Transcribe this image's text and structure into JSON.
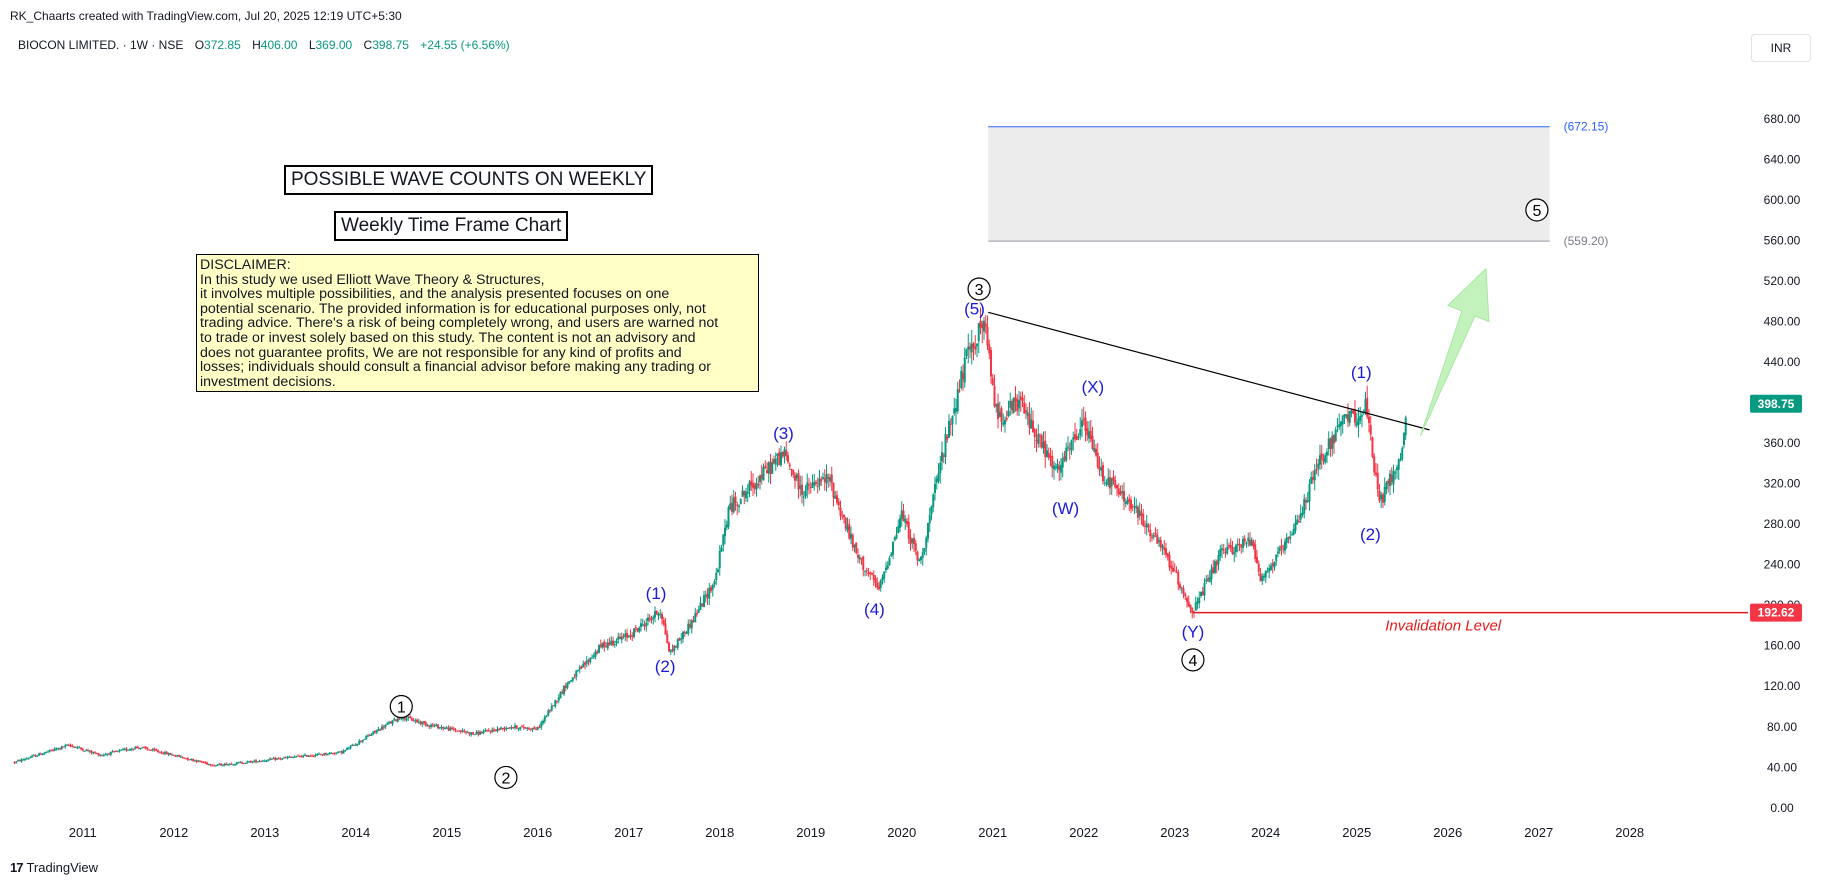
{
  "header": {
    "credit": "RK_Chaarts created with TradingView.com, Jul 20, 2025 12:19 UTC+5:30",
    "symbol_line": "BIOCON LIMITED. · 1W · NSE",
    "open_label": "O",
    "open": "372.85",
    "high_label": "H",
    "high": "406.00",
    "low_label": "L",
    "low": "369.00",
    "close_label": "C",
    "close": "398.75",
    "change": "+24.55 (+6.56%)",
    "currency": "INR"
  },
  "annotations": {
    "title_box": "POSSIBLE WAVE COUNTS ON WEEKLY",
    "subtitle_box": "Weekly Time Frame Chart",
    "disclaimer": "DISCLAIMER:\nIn this study we used Elliott Wave Theory & Structures,\nit involves multiple possibilities, and the analysis presented focuses on one\npotential scenario. The provided information is for educational purposes only, not\ntrading advice. There's a risk of being completely wrong, and users are warned not\nto trade or invest solely based on this study. The content is not an advisory and\ndoes not guarantee profits, We are not responsible for any kind of profits and\nlosses; individuals should consult a financial advisor before making any trading or\ninvestment decisions.",
    "invalidation_label": "Invalidation Level",
    "target_upper_label": "(672.15)",
    "target_lower_label": "(559.20)"
  },
  "footer": {
    "brand": "TradingView"
  },
  "colors": {
    "up": "#089981",
    "down": "#f23645",
    "wave_blue": "#1a1ad8",
    "invalid": "#e31b1b",
    "target_line": "#2962ff",
    "zone_fill": "#ececec",
    "arrow": "#b8f0b0"
  },
  "chart_data": {
    "type": "candlestick",
    "title": "BIOCON LIMITED. · 1W · NSE",
    "x_ticks": [
      "2011",
      "2012",
      "2013",
      "2014",
      "2015",
      "2016",
      "2017",
      "2018",
      "2019",
      "2020",
      "2021",
      "2022",
      "2023",
      "2024",
      "2025",
      "2026",
      "2027",
      "2028"
    ],
    "y_ticks": [
      "0.00",
      "40.00",
      "80.00",
      "120.00",
      "160.00",
      "200.00",
      "240.00",
      "280.00",
      "320.00",
      "360.00",
      "400.00",
      "440.00",
      "480.00",
      "520.00",
      "560.00",
      "600.00",
      "640.00",
      "680.00"
    ],
    "ylim": [
      -12,
      738
    ],
    "xlim": [
      2010.2,
      2029.3
    ],
    "price_anchors": [
      [
        2010.25,
        45
      ],
      [
        2010.6,
        55
      ],
      [
        2010.85,
        62
      ],
      [
        2011.2,
        52
      ],
      [
        2011.6,
        60
      ],
      [
        2012.0,
        52
      ],
      [
        2012.45,
        42
      ],
      [
        2012.8,
        45
      ],
      [
        2013.3,
        50
      ],
      [
        2013.85,
        55
      ],
      [
        2014.3,
        80
      ],
      [
        2014.5,
        90
      ],
      [
        2014.8,
        82
      ],
      [
        2015.3,
        73
      ],
      [
        2015.7,
        80
      ],
      [
        2016.0,
        78
      ],
      [
        2016.3,
        120
      ],
      [
        2016.7,
        160
      ],
      [
        2017.0,
        170
      ],
      [
        2017.35,
        195
      ],
      [
        2017.45,
        152
      ],
      [
        2017.7,
        185
      ],
      [
        2017.95,
        225
      ],
      [
        2018.1,
        295
      ],
      [
        2018.4,
        322
      ],
      [
        2018.7,
        350
      ],
      [
        2018.9,
        312
      ],
      [
        2019.2,
        325
      ],
      [
        2019.5,
        250
      ],
      [
        2019.75,
        215
      ],
      [
        2020.0,
        290
      ],
      [
        2020.2,
        240
      ],
      [
        2020.45,
        350
      ],
      [
        2020.7,
        440
      ],
      [
        2020.9,
        480
      ],
      [
        2021.05,
        385
      ],
      [
        2021.3,
        400
      ],
      [
        2021.7,
        330
      ],
      [
        2022.0,
        380
      ],
      [
        2022.2,
        330
      ],
      [
        2022.6,
        290
      ],
      [
        2022.9,
        250
      ],
      [
        2023.2,
        193
      ],
      [
        2023.5,
        250
      ],
      [
        2023.85,
        265
      ],
      [
        2023.95,
        225
      ],
      [
        2024.3,
        270
      ],
      [
        2024.6,
        345
      ],
      [
        2024.85,
        380
      ],
      [
        2025.1,
        395
      ],
      [
        2025.25,
        300
      ],
      [
        2025.5,
        350
      ],
      [
        2025.55,
        398.75
      ]
    ],
    "levels": {
      "invalidation": 192.62,
      "target_upper": 672.15,
      "target_lower": 559.2,
      "last_price": 398.75
    },
    "price_labels": {
      "last": "398.75",
      "invalidation": "192.62"
    },
    "trendline": [
      [
        2020.95,
        489
      ],
      [
        2025.8,
        373
      ]
    ],
    "target_zone": {
      "x0": 2020.95,
      "x1": 2027.12,
      "y0": 559.2,
      "y1": 672.15
    },
    "arrow": {
      "from": [
        2025.7,
        367
      ],
      "to": [
        2026.42,
        532
      ]
    },
    "wave_labels": [
      {
        "text": "①",
        "x": 2014.5,
        "y": 100,
        "style": "circle"
      },
      {
        "text": "②",
        "x": 2015.65,
        "y": 30,
        "style": "circle"
      },
      {
        "text": "③",
        "x": 2020.85,
        "y": 512,
        "style": "circle"
      },
      {
        "text": "④",
        "x": 2023.2,
        "y": 146,
        "style": "circle"
      },
      {
        "text": "⑤",
        "x": 2026.98,
        "y": 590,
        "style": "circle"
      },
      {
        "text": "(1)",
        "x": 2017.3,
        "y": 212,
        "style": "blue"
      },
      {
        "text": "(2)",
        "x": 2017.4,
        "y": 140,
        "style": "blue"
      },
      {
        "text": "(3)",
        "x": 2018.7,
        "y": 370,
        "style": "blue"
      },
      {
        "text": "(4)",
        "x": 2019.7,
        "y": 196,
        "style": "blue"
      },
      {
        "text": "(5)",
        "x": 2020.8,
        "y": 493,
        "style": "blue"
      },
      {
        "text": "(W)",
        "x": 2021.8,
        "y": 296,
        "style": "blue"
      },
      {
        "text": "(X)",
        "x": 2022.1,
        "y": 416,
        "style": "blue"
      },
      {
        "text": "(Y)",
        "x": 2023.2,
        "y": 174,
        "style": "blue"
      },
      {
        "text": "(1)",
        "x": 2025.05,
        "y": 430,
        "style": "blue"
      },
      {
        "text": "(2)",
        "x": 2025.15,
        "y": 270,
        "style": "blue"
      }
    ]
  }
}
